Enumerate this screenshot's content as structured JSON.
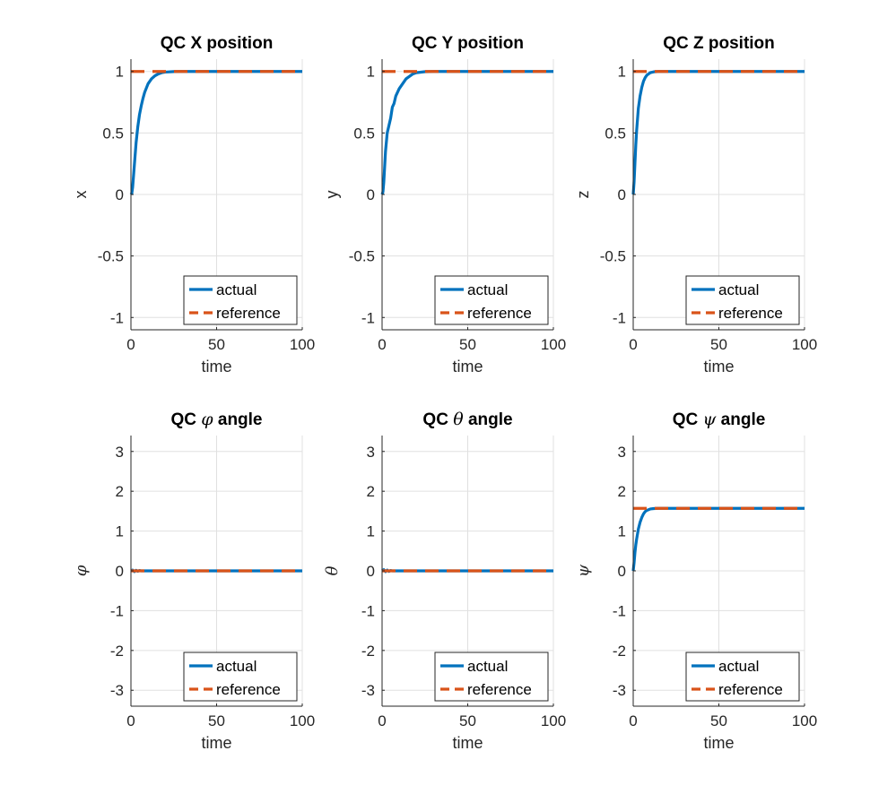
{
  "chart_data": [
    {
      "type": "line",
      "title_prefix": "QC",
      "title_symbol": "",
      "title_suffix": "X position",
      "xlabel": "time",
      "ylabel": "x",
      "ylabel_symbol": false,
      "xlim": [
        0,
        100
      ],
      "ylim": [
        -1.1,
        1.1
      ],
      "xticks": [
        0,
        50,
        100
      ],
      "yticks": [
        -1,
        -0.5,
        0,
        0.5,
        1
      ],
      "ytick_labels": [
        "-1",
        "-0.5",
        "0",
        "0.5",
        "1"
      ],
      "grid": true,
      "legend": "bottom-right",
      "series": [
        {
          "name": "actual",
          "style": "solid",
          "color": "#0072bd",
          "x": [
            0,
            0.5,
            1,
            2,
            3,
            4,
            5,
            6,
            7,
            8,
            10,
            12,
            14,
            16,
            18,
            20,
            25,
            30,
            40,
            50,
            60,
            70,
            80,
            90,
            100
          ],
          "y": [
            0,
            0.01,
            0.06,
            0.24,
            0.42,
            0.55,
            0.65,
            0.72,
            0.78,
            0.83,
            0.9,
            0.94,
            0.965,
            0.98,
            0.99,
            0.995,
            0.999,
            1,
            1,
            1,
            1,
            1,
            1,
            1,
            1
          ]
        },
        {
          "name": "reference",
          "style": "dashed",
          "color": "#d95319",
          "x": [
            0,
            100
          ],
          "y": [
            1,
            1
          ]
        }
      ]
    },
    {
      "type": "line",
      "title_prefix": "QC",
      "title_symbol": "",
      "title_suffix": "Y position",
      "xlabel": "time",
      "ylabel": "y",
      "ylabel_symbol": false,
      "xlim": [
        0,
        100
      ],
      "ylim": [
        -1.1,
        1.1
      ],
      "xticks": [
        0,
        50,
        100
      ],
      "yticks": [
        -1,
        -0.5,
        0,
        0.5,
        1
      ],
      "ytick_labels": [
        "-1",
        "-0.5",
        "0",
        "0.5",
        "1"
      ],
      "grid": true,
      "legend": "bottom-right",
      "series": [
        {
          "name": "actual",
          "style": "solid",
          "color": "#0072bd",
          "x": [
            0,
            0.5,
            1,
            2,
            3,
            4,
            5,
            6,
            7,
            8,
            10,
            12,
            14,
            16,
            18,
            20,
            25,
            30,
            40,
            50,
            60,
            70,
            80,
            90,
            100
          ],
          "y": [
            0,
            0.02,
            0.1,
            0.35,
            0.5,
            0.56,
            0.62,
            0.71,
            0.74,
            0.8,
            0.86,
            0.9,
            0.94,
            0.96,
            0.98,
            0.99,
            0.998,
            1,
            1,
            1,
            1,
            1,
            1,
            1,
            1
          ]
        },
        {
          "name": "reference",
          "style": "dashed",
          "color": "#d95319",
          "x": [
            0,
            100
          ],
          "y": [
            1,
            1
          ]
        }
      ]
    },
    {
      "type": "line",
      "title_prefix": "QC",
      "title_symbol": "",
      "title_suffix": "Z position",
      "xlabel": "time",
      "ylabel": "z",
      "ylabel_symbol": false,
      "xlim": [
        0,
        100
      ],
      "ylim": [
        -1.1,
        1.1
      ],
      "xticks": [
        0,
        50,
        100
      ],
      "yticks": [
        -1,
        -0.5,
        0,
        0.5,
        1
      ],
      "ytick_labels": [
        "-1",
        "-0.5",
        "0",
        "0.5",
        "1"
      ],
      "grid": true,
      "legend": "bottom-right",
      "series": [
        {
          "name": "actual",
          "style": "solid",
          "color": "#0072bd",
          "x": [
            0,
            0.5,
            1,
            1.5,
            2,
            3,
            4,
            5,
            6,
            7,
            8,
            10,
            12,
            15,
            20,
            30,
            40,
            50,
            60,
            70,
            80,
            90,
            100
          ],
          "y": [
            0,
            0.1,
            0.25,
            0.4,
            0.52,
            0.7,
            0.8,
            0.87,
            0.92,
            0.95,
            0.97,
            0.99,
            0.997,
            1,
            1,
            1,
            1,
            1,
            1,
            1,
            1,
            1,
            1
          ]
        },
        {
          "name": "reference",
          "style": "dashed",
          "color": "#d95319",
          "x": [
            0,
            100
          ],
          "y": [
            1,
            1
          ]
        }
      ]
    },
    {
      "type": "line",
      "title_prefix": "QC",
      "title_symbol": "φ",
      "title_suffix": "angle",
      "xlabel": "time",
      "ylabel": "φ",
      "ylabel_symbol": true,
      "xlim": [
        0,
        100
      ],
      "ylim": [
        -3.4,
        3.4
      ],
      "xticks": [
        0,
        50,
        100
      ],
      "yticks": [
        -3,
        -2,
        -1,
        0,
        1,
        2,
        3
      ],
      "ytick_labels": [
        "-3",
        "-2",
        "-1",
        "0",
        "1",
        "2",
        "3"
      ],
      "grid": true,
      "legend": "bottom-right",
      "series": [
        {
          "name": "actual",
          "style": "solid",
          "color": "#0072bd",
          "x": [
            0,
            1,
            2,
            3,
            4,
            5,
            6,
            8,
            10,
            100
          ],
          "y": [
            0,
            0.02,
            -0.02,
            0.015,
            -0.01,
            0.01,
            0,
            0,
            0,
            0
          ]
        },
        {
          "name": "reference",
          "style": "dashed",
          "color": "#d95319",
          "x": [
            0,
            100
          ],
          "y": [
            0,
            0
          ]
        }
      ]
    },
    {
      "type": "line",
      "title_prefix": "QC",
      "title_symbol": "θ",
      "title_suffix": "angle",
      "xlabel": "time",
      "ylabel": "θ",
      "ylabel_symbol": true,
      "xlim": [
        0,
        100
      ],
      "ylim": [
        -3.4,
        3.4
      ],
      "xticks": [
        0,
        50,
        100
      ],
      "yticks": [
        -3,
        -2,
        -1,
        0,
        1,
        2,
        3
      ],
      "ytick_labels": [
        "-3",
        "-2",
        "-1",
        "0",
        "1",
        "2",
        "3"
      ],
      "grid": true,
      "legend": "bottom-right",
      "series": [
        {
          "name": "actual",
          "style": "solid",
          "color": "#0072bd",
          "x": [
            0,
            1,
            2,
            3,
            4,
            5,
            6,
            8,
            10,
            100
          ],
          "y": [
            0,
            0.03,
            -0.02,
            0.02,
            -0.015,
            0.01,
            0,
            0,
            0,
            0
          ]
        },
        {
          "name": "reference",
          "style": "dashed",
          "color": "#d95319",
          "x": [
            0,
            100
          ],
          "y": [
            0,
            0
          ]
        }
      ]
    },
    {
      "type": "line",
      "title_prefix": "QC",
      "title_symbol": "ψ",
      "title_suffix": "angle",
      "xlabel": "time",
      "ylabel": "ψ",
      "ylabel_symbol": true,
      "xlim": [
        0,
        100
      ],
      "ylim": [
        -3.4,
        3.4
      ],
      "xticks": [
        0,
        50,
        100
      ],
      "yticks": [
        -3,
        -2,
        -1,
        0,
        1,
        2,
        3
      ],
      "ytick_labels": [
        "-3",
        "-2",
        "-1",
        "0",
        "1",
        "2",
        "3"
      ],
      "grid": true,
      "legend": "bottom-right",
      "series": [
        {
          "name": "actual",
          "style": "solid",
          "color": "#0072bd",
          "x": [
            0,
            0.5,
            1,
            1.5,
            2,
            3,
            4,
            5,
            6,
            7,
            8,
            10,
            12,
            15,
            20,
            30,
            40,
            50,
            60,
            70,
            80,
            90,
            100
          ],
          "y": [
            0,
            0.2,
            0.45,
            0.65,
            0.8,
            1.05,
            1.22,
            1.34,
            1.43,
            1.49,
            1.52,
            1.555,
            1.565,
            1.57,
            1.5708,
            1.5708,
            1.5708,
            1.5708,
            1.5708,
            1.5708,
            1.5708,
            1.5708,
            1.5708
          ]
        },
        {
          "name": "reference",
          "style": "dashed",
          "color": "#d95319",
          "x": [
            0,
            100
          ],
          "y": [
            1.5708,
            1.5708
          ]
        }
      ]
    }
  ]
}
